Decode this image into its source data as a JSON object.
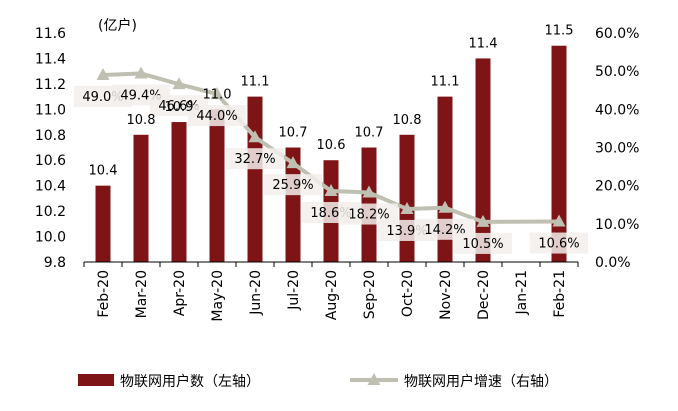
{
  "chart_data": {
    "type": "bar",
    "unit_label": "(亿户)",
    "categories": [
      "Feb-20",
      "Mar-20",
      "Apr-20",
      "May-20",
      "Jun-20",
      "Jul-20",
      "Aug-20",
      "Sep-20",
      "Oct-20",
      "Nov-20",
      "Dec-20",
      "Jan-21",
      "Feb-21"
    ],
    "series": [
      {
        "name": "物联网用户数（左轴）",
        "type": "bar",
        "axis": "left",
        "color": "#7f1416",
        "values": [
          10.4,
          10.8,
          10.9,
          11.0,
          11.1,
          10.7,
          10.6,
          10.7,
          10.8,
          11.1,
          11.4,
          null,
          11.5
        ],
        "labels": [
          "10.4",
          "10.8",
          "10.9",
          "11.0",
          "11.1",
          "10.7",
          "10.6",
          "10.7",
          "10.8",
          "11.1",
          "11.4",
          "",
          "11.5"
        ]
      },
      {
        "name": "物联网用户增速（右轴）",
        "type": "line",
        "axis": "right",
        "color": "#bfbfb2",
        "values": [
          49.0,
          49.4,
          46.6,
          44.0,
          32.7,
          25.9,
          18.6,
          18.2,
          13.9,
          14.2,
          10.5,
          null,
          10.6
        ],
        "labels": [
          "49.0%",
          "49.4%",
          "46.6%",
          "44.0%",
          "32.7%",
          "25.9%",
          "18.6%",
          "18.2%",
          "13.9%",
          "14.2%",
          "10.5%",
          "",
          "10.6%"
        ]
      }
    ],
    "y_left": {
      "min": 9.8,
      "max": 11.6,
      "ticks": [
        "9.8",
        "10.0",
        "10.2",
        "10.4",
        "10.6",
        "10.8",
        "11.0",
        "11.2",
        "11.4",
        "11.6"
      ]
    },
    "y_right": {
      "min": 0,
      "max": 60,
      "ticks": [
        "0.0%",
        "10.0%",
        "20.0%",
        "30.0%",
        "40.0%",
        "50.0%",
        "60.0%"
      ]
    },
    "legend_position": "bottom",
    "grid": false
  }
}
